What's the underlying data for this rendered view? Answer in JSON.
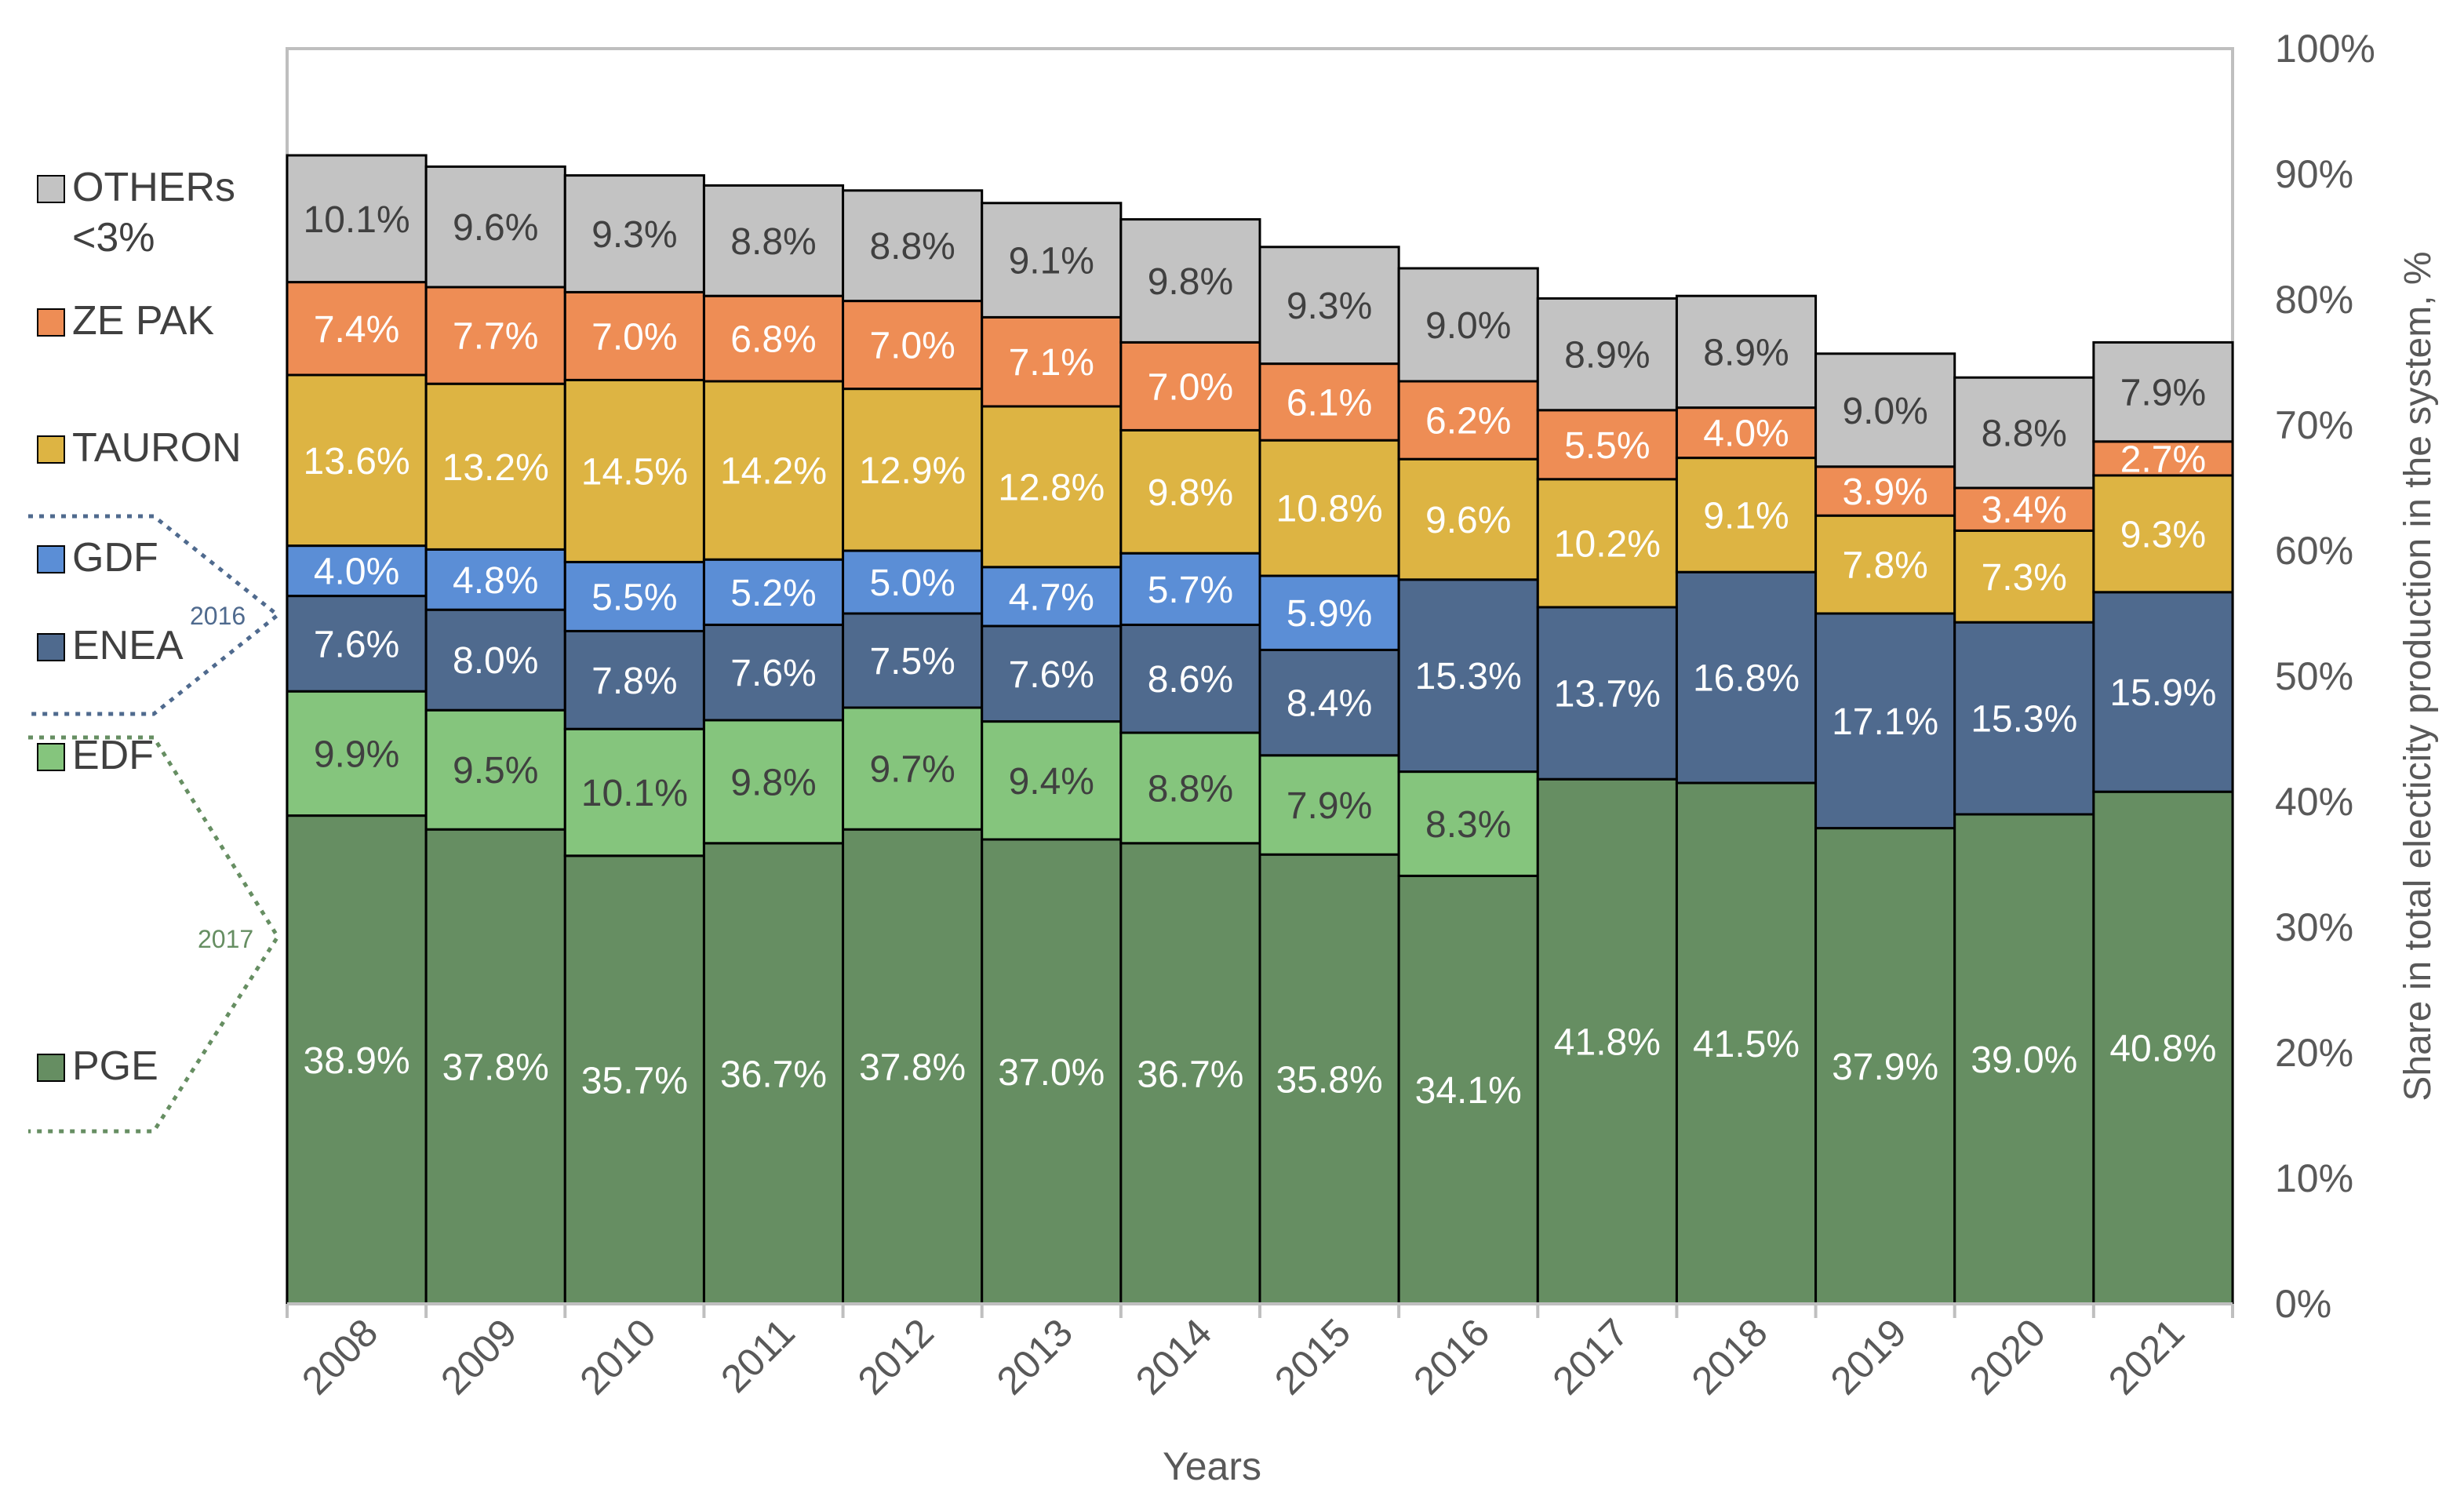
{
  "chart_data": {
    "type": "bar",
    "stacked": true,
    "xlabel": "Years",
    "ylabel": "Share in total electicity production in the system, %",
    "ylim": [
      0,
      100
    ],
    "y_axis_side": "right",
    "y_ticks": [
      "0%",
      "10%",
      "20%",
      "30%",
      "40%",
      "50%",
      "60%",
      "70%",
      "80%",
      "90%",
      "100%"
    ],
    "grid": false,
    "legend_position": "left",
    "categories": [
      "2008",
      "2009",
      "2010",
      "2011",
      "2012",
      "2013",
      "2014",
      "2015",
      "2016",
      "2017",
      "2018",
      "2019",
      "2020",
      "2021"
    ],
    "series": [
      {
        "name": "PGE",
        "legend_label": "PGE",
        "color": "#668e62",
        "label_color": "#ffffff",
        "values": [
          38.9,
          37.8,
          35.7,
          36.7,
          37.8,
          37.0,
          36.7,
          35.8,
          34.1,
          41.8,
          41.5,
          37.9,
          39.0,
          40.8
        ],
        "labels": [
          "38.9%",
          "37.8%",
          "35.7%",
          "36.7%",
          "37.8%",
          "37.0%",
          "36.7%",
          "35.8%",
          "34.1%",
          "41.8%",
          "41.5%",
          "37.9%",
          "39.0%",
          "40.8%"
        ]
      },
      {
        "name": "EDF",
        "legend_label": "EDF",
        "color": "#85c57d",
        "label_color": "#404040",
        "values": [
          9.9,
          9.5,
          10.1,
          9.8,
          9.7,
          9.4,
          8.8,
          7.9,
          8.3,
          null,
          null,
          null,
          null,
          null
        ],
        "labels": [
          "9.9%",
          "9.5%",
          "10.1%",
          "9.8%",
          "9.7%",
          "9.4%",
          "8.8%",
          "7.9%",
          "8.3%",
          null,
          null,
          null,
          null,
          null
        ]
      },
      {
        "name": "ENEA",
        "legend_label": "ENEA",
        "color": "#4f6a8e",
        "label_color": "#ffffff",
        "values": [
          7.6,
          8.0,
          7.8,
          7.6,
          7.5,
          7.6,
          8.6,
          8.4,
          15.3,
          13.7,
          16.8,
          17.1,
          15.3,
          15.9
        ],
        "labels": [
          "7.6%",
          "8.0%",
          "7.8%",
          "7.6%",
          "7.5%",
          "7.6%",
          "8.6%",
          "8.4%",
          "15.3%",
          "13.7%",
          "16.8%",
          "17.1%",
          "15.3%",
          "15.9%"
        ]
      },
      {
        "name": "GDF",
        "legend_label": "GDF",
        "color": "#5b8ed6",
        "label_color": "#ffffff",
        "values": [
          4.0,
          4.8,
          5.5,
          5.2,
          5.0,
          4.7,
          5.7,
          5.9,
          null,
          null,
          null,
          null,
          null,
          null
        ],
        "labels": [
          "4.0%",
          "4.8%",
          "5.5%",
          "5.2%",
          "5.0%",
          "4.7%",
          "5.7%",
          "5.9%",
          null,
          null,
          null,
          null,
          null,
          null
        ]
      },
      {
        "name": "TAURON",
        "legend_label": "TAURON",
        "color": "#ddb443",
        "label_color": "#ffffff",
        "values": [
          13.6,
          13.2,
          14.5,
          14.2,
          12.9,
          12.8,
          9.8,
          10.8,
          9.6,
          10.2,
          9.1,
          7.8,
          7.3,
          9.3
        ],
        "labels": [
          "13.6%",
          "13.2%",
          "14.5%",
          "14.2%",
          "12.9%",
          "12.8%",
          "9.8%",
          "10.8%",
          "9.6%",
          "10.2%",
          "9.1%",
          "7.8%",
          "7.3%",
          "9.3%"
        ]
      },
      {
        "name": "ZE PAK",
        "legend_label": "ZE PAK",
        "color": "#ee8d55",
        "label_color": "#ffffff",
        "values": [
          7.4,
          7.7,
          7.0,
          6.8,
          7.0,
          7.1,
          7.0,
          6.1,
          6.2,
          5.5,
          4.0,
          3.9,
          3.4,
          2.7
        ],
        "labels": [
          "7.4%",
          "7.7%",
          "7.0%",
          "6.8%",
          "7.0%",
          "7.1%",
          "7.0%",
          "6.1%",
          "6.2%",
          "5.5%",
          "4.0%",
          "3.9%",
          "3.4%",
          "2.7%"
        ]
      },
      {
        "name": "OTHERs <3%",
        "legend_label": [
          "OTHERs",
          "<3%"
        ],
        "color": "#c3c3c3",
        "label_color": "#404040",
        "values": [
          10.1,
          9.6,
          9.3,
          8.8,
          8.8,
          9.1,
          9.8,
          9.3,
          9.0,
          8.9,
          8.9,
          9.0,
          8.8,
          7.9
        ],
        "labels": [
          "10.1%",
          "9.6%",
          "9.3%",
          "8.8%",
          "8.8%",
          "9.1%",
          "9.8%",
          "9.3%",
          "9.0%",
          "8.9%",
          "8.9%",
          "9.0%",
          "8.8%",
          "7.9%"
        ]
      }
    ],
    "annotations": [
      {
        "text": "2016",
        "marks": "GDF merged into ENEA",
        "color": "#4f6a8e",
        "style": "dotted bracket"
      },
      {
        "text": "2017",
        "marks": "EDF merged into PGE",
        "color": "#668e62",
        "style": "dotted bracket"
      }
    ]
  }
}
